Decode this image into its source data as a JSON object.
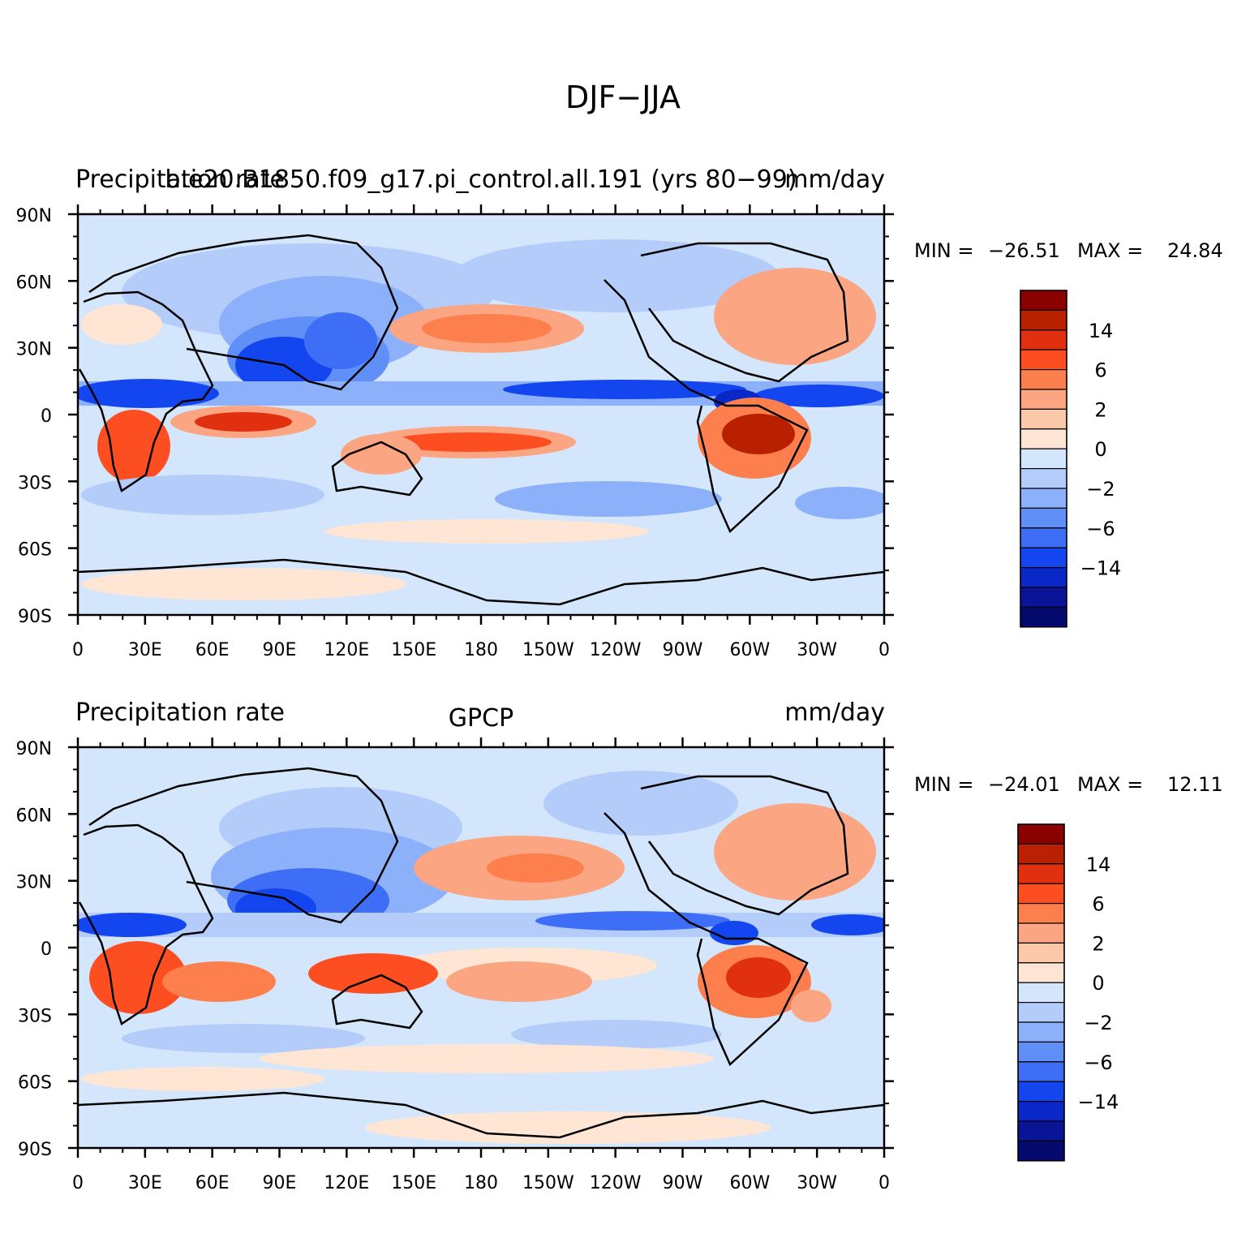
{
  "figure": {
    "title": "DJF−JJA"
  },
  "axes": {
    "lat_labels": [
      "90N",
      "60N",
      "30N",
      "0",
      "30S",
      "60S",
      "90S"
    ],
    "lon_labels": [
      "0",
      "30E",
      "60E",
      "90E",
      "120E",
      "150E",
      "180",
      "150W",
      "120W",
      "90W",
      "60W",
      "30W",
      "0"
    ]
  },
  "colorbar": {
    "tick_labels": [
      "14",
      "6",
      "2",
      "0",
      "−2",
      "−6",
      "−14"
    ],
    "colors": [
      "#8b0000",
      "#b82000",
      "#e03010",
      "#fc4e20",
      "#fd7f4e",
      "#fca582",
      "#fcc8aa",
      "#fee5d4",
      "#d4e6fc",
      "#b4ccfa",
      "#8cb0fa",
      "#5f8ff7",
      "#3d6ef5",
      "#1446f0",
      "#0a28c8",
      "#0a1496",
      "#050a6e"
    ]
  },
  "panels": [
    {
      "left_title": "Precipitation rate",
      "center_title": "b.e20.B1850.f09_g17.pi_control.all.191 (yrs 80−99)",
      "right_title": "mm/day",
      "stats": {
        "min_label": "MIN =",
        "min_value": "−26.51",
        "max_label": "MAX =",
        "max_value": "24.84"
      }
    },
    {
      "left_title": "Precipitation rate",
      "center_title": "GPCP",
      "right_title": "mm/day",
      "stats": {
        "min_label": "MIN =",
        "min_value": "−24.01",
        "max_label": "MAX =",
        "max_value": "12.11"
      }
    }
  ]
}
